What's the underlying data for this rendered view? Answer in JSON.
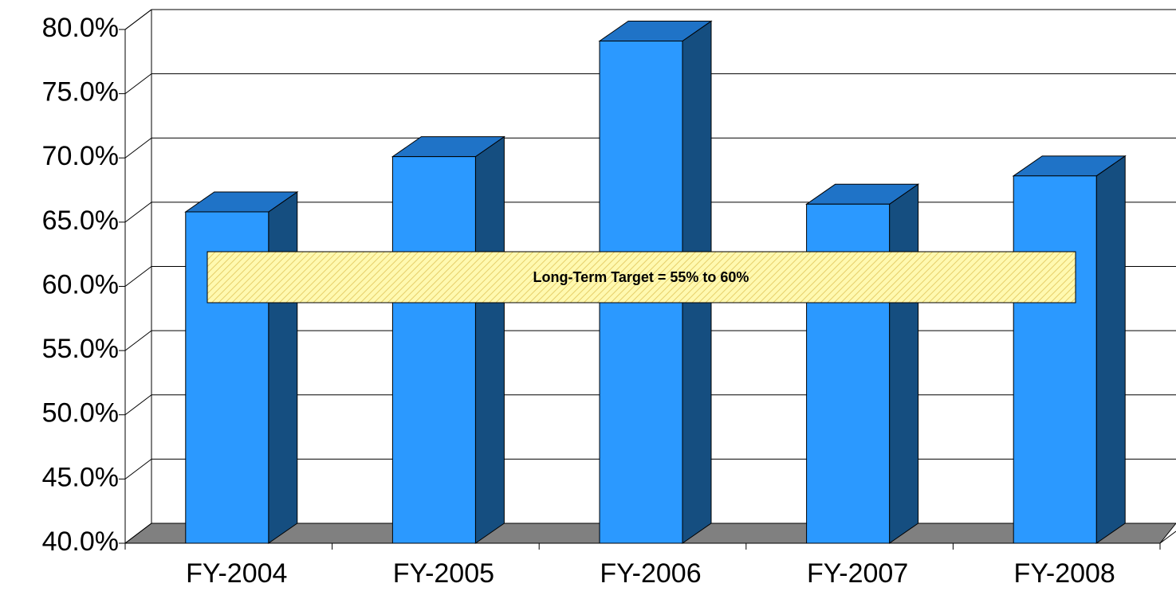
{
  "chart_data": {
    "type": "bar3d",
    "categories": [
      "FY-2004",
      "FY-2005",
      "FY-2006",
      "FY-2007",
      "FY-2008"
    ],
    "values": [
      65.8,
      70.1,
      79.1,
      66.4,
      68.6
    ],
    "color": "#2b99ff",
    "ylim": [
      40,
      80
    ],
    "yticks": [
      {
        "value": 40,
        "label": "40.0%"
      },
      {
        "value": 45,
        "label": "45.0%"
      },
      {
        "value": 50,
        "label": "50.0%"
      },
      {
        "value": 55,
        "label": "55.0%"
      },
      {
        "value": 60,
        "label": "60.0%"
      },
      {
        "value": 65,
        "label": "65.0%"
      },
      {
        "value": 70,
        "label": "70.0%"
      },
      {
        "value": 75,
        "label": "75.0%"
      },
      {
        "value": 80,
        "label": "80.0%"
      }
    ],
    "grid": true,
    "annotation": "Long-Term Target = 55% to 60%"
  }
}
